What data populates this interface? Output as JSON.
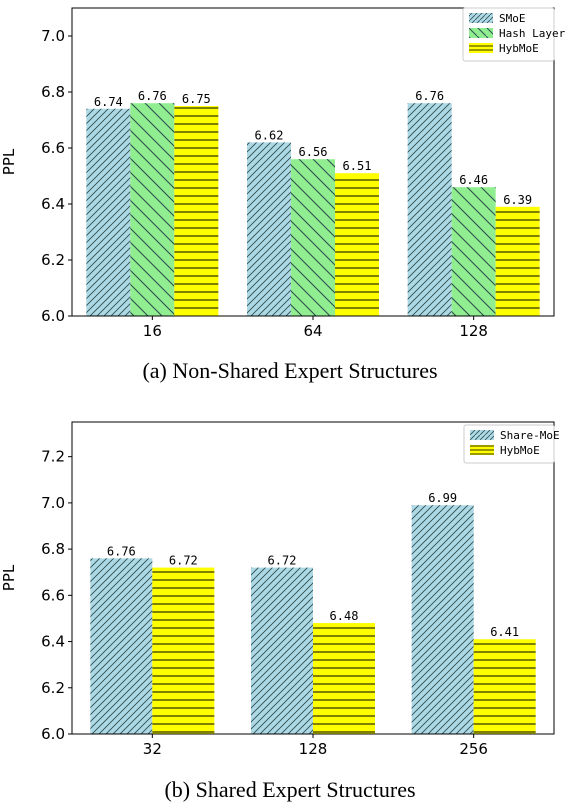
{
  "colors": {
    "smoe_fill": "#add8e6",
    "hash_fill": "#90ee90",
    "hyb_fill": "#ffff00",
    "hatch": "#2f4f4f",
    "hyb_hatch": "#000000"
  },
  "chart_data": [
    {
      "type": "bar",
      "caption": "(a)  Non-Shared Expert Structures",
      "ylabel": "PPL",
      "ylim": [
        6.0,
        7.1
      ],
      "yticks": [
        "6.0",
        "6.2",
        "6.4",
        "6.6",
        "6.8",
        "7.0"
      ],
      "categories": [
        "16",
        "64",
        "128"
      ],
      "legend_position": "top-right",
      "series": [
        {
          "name": "SMoE",
          "values": [
            6.74,
            6.62,
            6.76
          ],
          "labels": [
            "6.74",
            "6.62",
            "6.76"
          ],
          "fill": "#add8e6",
          "hatch": "diag"
        },
        {
          "name": "Hash Layer",
          "values": [
            6.76,
            6.56,
            6.46
          ],
          "labels": [
            "6.76",
            "6.56",
            "6.46"
          ],
          "fill": "#90ee90",
          "hatch": "back"
        },
        {
          "name": "HybMoE",
          "values": [
            6.75,
            6.51,
            6.39
          ],
          "labels": [
            "6.75",
            "6.51",
            "6.39"
          ],
          "fill": "#ffff00",
          "hatch": "horiz"
        }
      ]
    },
    {
      "type": "bar",
      "caption": "(b)  Shared Expert Structures",
      "ylabel": "PPL",
      "ylim": [
        6.0,
        7.35
      ],
      "yticks": [
        "6.0",
        "6.2",
        "6.4",
        "6.6",
        "6.8",
        "7.0",
        "7.2"
      ],
      "categories": [
        "32",
        "128",
        "256"
      ],
      "legend_position": "top-right",
      "series": [
        {
          "name": "Share-MoE",
          "values": [
            6.76,
            6.72,
            6.99
          ],
          "labels": [
            "6.76",
            "6.72",
            "6.99"
          ],
          "fill": "#add8e6",
          "hatch": "diag"
        },
        {
          "name": "HybMoE",
          "values": [
            6.72,
            6.48,
            6.41
          ],
          "labels": [
            "6.72",
            "6.48",
            "6.41"
          ],
          "fill": "#ffff00",
          "hatch": "horiz"
        }
      ]
    }
  ]
}
